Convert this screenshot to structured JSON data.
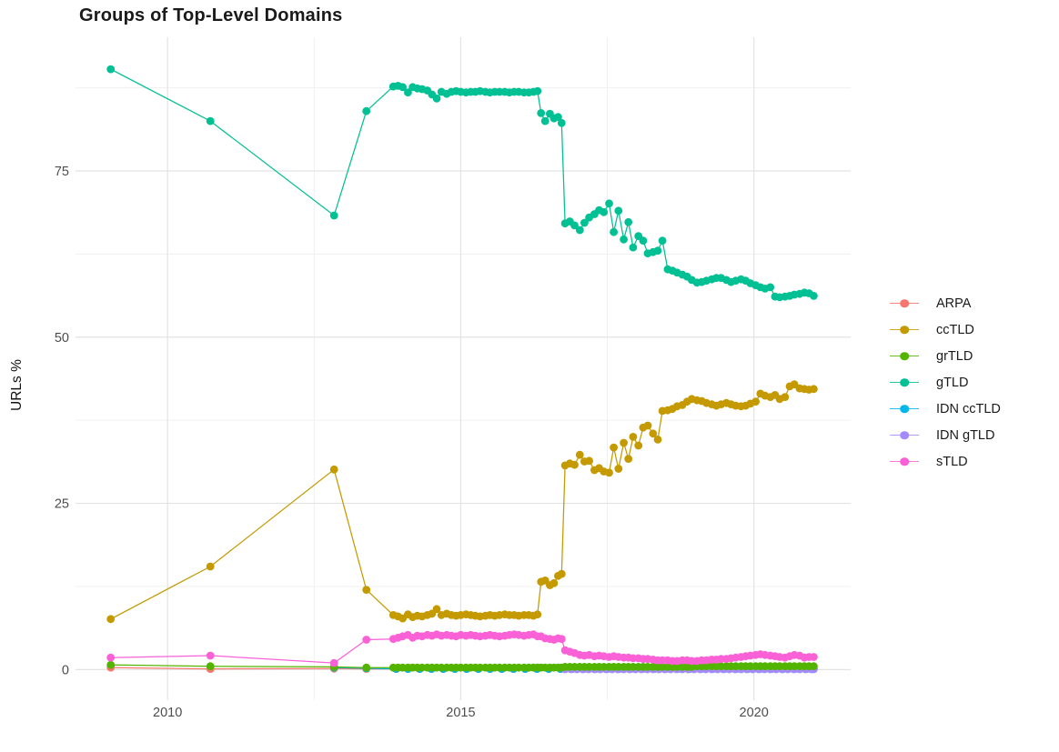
{
  "chart_data": {
    "type": "line",
    "title": "Groups of Top-Level Domains",
    "xlabel": "",
    "ylabel": "URLs %",
    "legend_position": "right",
    "grid": true,
    "xlim": [
      2008.43,
      2021.65
    ],
    "ylim": [
      -4.6,
      95.1
    ],
    "x_ticks": [
      2010,
      2015,
      2020
    ],
    "x_tick_labels": [
      "2010",
      "2015",
      "2020"
    ],
    "x_minor": [
      2012.5,
      2017.5
    ],
    "y_ticks": [
      0,
      25,
      50,
      75
    ],
    "y_tick_labels": [
      "0",
      "25",
      "50",
      "75"
    ],
    "y_minor": [
      12.5,
      37.5,
      62.5,
      87.5
    ],
    "theme": {
      "background": "#ffffff",
      "grid_major": "#e3e3e3",
      "grid_minor": "#efefef",
      "tick_label_color": "#4d4d4d",
      "title_color": "#1a1a1a",
      "axis_title_color": "#111111"
    },
    "series": [
      {
        "name": "ARPA",
        "color": "#f8766d",
        "x": [
          2009.03,
          2010.73,
          2012.84,
          2013.39,
          2013.9,
          2014.1,
          2014.3,
          2014.5,
          2014.7,
          2014.9,
          2015.1,
          2015.3,
          2015.5,
          2015.7,
          2015.9,
          2016.1,
          2016.3,
          2016.5,
          2016.7,
          2016.9,
          2017.1,
          2017.3,
          2017.5,
          2017.7,
          2017.9,
          2018.1,
          2018.3,
          2018.5,
          2018.7,
          2018.9,
          2019.1,
          2019.3,
          2019.5,
          2019.7,
          2019.9,
          2020.1,
          2020.3,
          2020.5,
          2020.7,
          2020.9,
          2021.02
        ],
        "y": [
          0.3,
          0.1,
          0.15,
          0.1,
          0.1,
          0.1,
          0.1,
          0.1,
          0.1,
          0.1,
          0.1,
          0.1,
          0.1,
          0.1,
          0.1,
          0.1,
          0.1,
          0.1,
          0.1,
          0.1,
          0.1,
          0.1,
          0.1,
          0.1,
          0.1,
          0.1,
          0.1,
          0.1,
          0.1,
          0.1,
          0.1,
          0.1,
          0.1,
          0.1,
          0.1,
          0.1,
          0.1,
          0.1,
          0.1,
          0.1,
          0.1
        ]
      },
      {
        "name": "ccTLD",
        "color": "#c49a00",
        "x": [
          2009.03,
          2010.73,
          2012.84,
          2013.39,
          2013.85,
          2013.93,
          2014.01,
          2014.1,
          2014.18,
          2014.26,
          2014.34,
          2014.43,
          2014.51,
          2014.59,
          2014.67,
          2014.76,
          2014.84,
          2014.92,
          2015.0,
          2015.09,
          2015.17,
          2015.25,
          2015.33,
          2015.42,
          2015.5,
          2015.58,
          2015.66,
          2015.75,
          2015.83,
          2015.91,
          2015.99,
          2016.08,
          2016.16,
          2016.24,
          2016.31,
          2016.37,
          2016.44,
          2016.52,
          2016.59,
          2016.66,
          2016.72,
          2016.78,
          2016.86,
          2016.94,
          2017.03,
          2017.11,
          2017.19,
          2017.28,
          2017.36,
          2017.44,
          2017.53,
          2017.61,
          2017.69,
          2017.78,
          2017.86,
          2017.94,
          2018.03,
          2018.11,
          2018.19,
          2018.28,
          2018.36,
          2018.44,
          2018.53,
          2018.61,
          2018.69,
          2018.78,
          2018.86,
          2018.94,
          2019.03,
          2019.11,
          2019.19,
          2019.28,
          2019.36,
          2019.44,
          2019.53,
          2019.61,
          2019.69,
          2019.78,
          2019.86,
          2019.94,
          2020.03,
          2020.11,
          2020.19,
          2020.28,
          2020.36,
          2020.44,
          2020.53,
          2020.61,
          2020.69,
          2020.78,
          2020.86,
          2020.94,
          2021.02
        ],
        "y": [
          7.6,
          15.5,
          30.1,
          12.0,
          8.2,
          8.0,
          7.7,
          8.3,
          7.9,
          8.1,
          8.0,
          8.2,
          8.4,
          9.1,
          8.2,
          8.4,
          8.2,
          8.1,
          8.2,
          8.3,
          8.2,
          8.1,
          8.0,
          8.1,
          8.2,
          8.1,
          8.2,
          8.3,
          8.2,
          8.2,
          8.1,
          8.2,
          8.2,
          8.1,
          8.3,
          13.2,
          13.4,
          12.7,
          13.0,
          14.1,
          14.4,
          30.7,
          31.0,
          30.8,
          32.3,
          31.3,
          31.4,
          30.0,
          30.3,
          29.8,
          29.6,
          33.4,
          30.2,
          34.1,
          31.7,
          35.0,
          33.7,
          36.4,
          36.7,
          35.5,
          34.6,
          38.9,
          39.0,
          39.2,
          39.6,
          39.8,
          40.3,
          40.7,
          40.5,
          40.4,
          40.1,
          39.9,
          39.7,
          39.9,
          40.1,
          39.9,
          39.7,
          39.6,
          39.7,
          40.0,
          40.3,
          41.5,
          41.2,
          41.0,
          41.3,
          40.7,
          41.0,
          42.6,
          42.9,
          42.3,
          42.2,
          42.1,
          42.2
        ]
      },
      {
        "name": "grTLD",
        "color": "#53b400",
        "x": [
          2009.03,
          2010.73,
          2012.84,
          2013.39,
          2013.85,
          2013.93,
          2014.01,
          2014.1,
          2014.18,
          2014.26,
          2014.34,
          2014.43,
          2014.51,
          2014.59,
          2014.67,
          2014.76,
          2014.84,
          2014.92,
          2015.0,
          2015.09,
          2015.17,
          2015.25,
          2015.33,
          2015.42,
          2015.5,
          2015.58,
          2015.66,
          2015.75,
          2015.83,
          2015.91,
          2015.99,
          2016.08,
          2016.16,
          2016.24,
          2016.31,
          2016.37,
          2016.44,
          2016.52,
          2016.59,
          2016.66,
          2016.72,
          2016.78,
          2016.86,
          2016.94,
          2017.03,
          2017.11,
          2017.19,
          2017.28,
          2017.36,
          2017.44,
          2017.53,
          2017.61,
          2017.69,
          2017.78,
          2017.86,
          2017.94,
          2018.03,
          2018.11,
          2018.19,
          2018.28,
          2018.36,
          2018.44,
          2018.53,
          2018.61,
          2018.69,
          2018.78,
          2018.86,
          2018.94,
          2019.03,
          2019.11,
          2019.19,
          2019.28,
          2019.36,
          2019.44,
          2019.53,
          2019.61,
          2019.69,
          2019.78,
          2019.86,
          2019.94,
          2020.03,
          2020.11,
          2020.19,
          2020.28,
          2020.36,
          2020.44,
          2020.53,
          2020.61,
          2020.69,
          2020.78,
          2020.86,
          2020.94,
          2021.02
        ],
        "y": [
          0.7,
          0.5,
          0.4,
          0.3,
          0.3,
          0.3,
          0.3,
          0.3,
          0.3,
          0.3,
          0.3,
          0.3,
          0.3,
          0.3,
          0.3,
          0.3,
          0.3,
          0.3,
          0.3,
          0.3,
          0.3,
          0.3,
          0.3,
          0.3,
          0.3,
          0.3,
          0.3,
          0.3,
          0.3,
          0.3,
          0.3,
          0.3,
          0.3,
          0.3,
          0.3,
          0.3,
          0.3,
          0.3,
          0.3,
          0.3,
          0.3,
          0.4,
          0.4,
          0.4,
          0.4,
          0.4,
          0.4,
          0.4,
          0.4,
          0.4,
          0.4,
          0.4,
          0.4,
          0.4,
          0.4,
          0.4,
          0.4,
          0.4,
          0.4,
          0.4,
          0.4,
          0.4,
          0.4,
          0.4,
          0.4,
          0.4,
          0.4,
          0.4,
          0.5,
          0.5,
          0.5,
          0.5,
          0.5,
          0.5,
          0.5,
          0.5,
          0.5,
          0.5,
          0.5,
          0.5,
          0.5,
          0.5,
          0.5,
          0.5,
          0.5,
          0.5,
          0.5,
          0.5,
          0.5,
          0.5,
          0.5,
          0.5,
          0.5
        ]
      },
      {
        "name": "gTLD",
        "color": "#00c094",
        "x": [
          2009.03,
          2010.73,
          2012.84,
          2013.39,
          2013.85,
          2013.93,
          2014.01,
          2014.1,
          2014.18,
          2014.26,
          2014.34,
          2014.43,
          2014.51,
          2014.59,
          2014.67,
          2014.76,
          2014.84,
          2014.92,
          2015.0,
          2015.09,
          2015.17,
          2015.25,
          2015.33,
          2015.42,
          2015.5,
          2015.58,
          2015.66,
          2015.75,
          2015.83,
          2015.91,
          2015.99,
          2016.08,
          2016.16,
          2016.24,
          2016.31,
          2016.37,
          2016.44,
          2016.52,
          2016.59,
          2016.66,
          2016.72,
          2016.78,
          2016.86,
          2016.94,
          2017.03,
          2017.11,
          2017.19,
          2017.28,
          2017.36,
          2017.44,
          2017.53,
          2017.61,
          2017.69,
          2017.78,
          2017.86,
          2017.94,
          2018.03,
          2018.11,
          2018.19,
          2018.28,
          2018.36,
          2018.44,
          2018.53,
          2018.61,
          2018.69,
          2018.78,
          2018.86,
          2018.94,
          2019.03,
          2019.11,
          2019.19,
          2019.28,
          2019.36,
          2019.44,
          2019.53,
          2019.61,
          2019.69,
          2019.78,
          2019.86,
          2019.94,
          2020.03,
          2020.11,
          2020.19,
          2020.28,
          2020.36,
          2020.44,
          2020.53,
          2020.61,
          2020.69,
          2020.78,
          2020.86,
          2020.94,
          2021.02
        ],
        "y": [
          90.3,
          82.5,
          68.3,
          84.0,
          87.7,
          87.8,
          87.6,
          86.8,
          87.6,
          87.4,
          87.3,
          87.1,
          86.5,
          85.9,
          86.9,
          86.6,
          86.9,
          87.0,
          86.9,
          86.8,
          86.9,
          86.9,
          87.0,
          86.9,
          86.8,
          86.9,
          86.9,
          86.9,
          86.8,
          86.9,
          86.9,
          86.8,
          86.8,
          86.9,
          87.0,
          83.7,
          82.5,
          83.6,
          82.9,
          83.1,
          82.2,
          67.1,
          67.4,
          66.8,
          66.1,
          67.2,
          68.0,
          68.5,
          69.1,
          68.8,
          70.1,
          65.8,
          69.0,
          64.7,
          67.3,
          63.5,
          65.2,
          64.5,
          62.6,
          62.8,
          63.0,
          64.5,
          60.2,
          60.0,
          59.7,
          59.4,
          59.1,
          58.6,
          58.2,
          58.3,
          58.5,
          58.7,
          58.9,
          58.9,
          58.6,
          58.3,
          58.5,
          58.7,
          58.5,
          58.1,
          57.8,
          57.5,
          57.3,
          57.5,
          56.1,
          56.0,
          56.1,
          56.2,
          56.4,
          56.5,
          56.7,
          56.6,
          56.2
        ]
      },
      {
        "name": "IDN ccTLD",
        "color": "#00b6eb",
        "x": [
          2012.84,
          2013.39,
          2013.9,
          2014.1,
          2014.3,
          2014.5,
          2014.7,
          2014.9,
          2015.1,
          2015.3,
          2015.5,
          2015.7,
          2015.9,
          2016.1,
          2016.3,
          2016.5,
          2016.7,
          2016.9,
          2017.1,
          2017.3,
          2017.5,
          2017.7,
          2017.9,
          2018.1,
          2018.3,
          2018.5,
          2018.7,
          2018.9,
          2019.1,
          2019.3,
          2019.5,
          2019.7,
          2019.9,
          2020.1,
          2020.3,
          2020.5,
          2020.7,
          2020.9,
          2021.02
        ],
        "y": [
          0.3,
          0.2,
          0.1,
          0.1,
          0.1,
          0.1,
          0.1,
          0.1,
          0.1,
          0.1,
          0.1,
          0.1,
          0.1,
          0.1,
          0.1,
          0.1,
          0.1,
          0.1,
          0.1,
          0.1,
          0.1,
          0.1,
          0.1,
          0.1,
          0.1,
          0.1,
          0.1,
          0.1,
          0.1,
          0.1,
          0.1,
          0.1,
          0.1,
          0.1,
          0.1,
          0.1,
          0.1,
          0.1,
          0.1
        ]
      },
      {
        "name": "IDN gTLD",
        "color": "#a58aff",
        "x": [
          2016.78,
          2016.88,
          2016.98,
          2017.08,
          2017.18,
          2017.28,
          2017.38,
          2017.48,
          2017.58,
          2017.68,
          2017.78,
          2017.88,
          2017.98,
          2018.08,
          2018.18,
          2018.28,
          2018.38,
          2018.48,
          2018.58,
          2018.68,
          2018.78,
          2018.88,
          2018.98,
          2019.08,
          2019.18,
          2019.28,
          2019.38,
          2019.48,
          2019.58,
          2019.68,
          2019.78,
          2019.88,
          2019.98,
          2020.08,
          2020.18,
          2020.28,
          2020.38,
          2020.48,
          2020.58,
          2020.68,
          2020.78,
          2020.88,
          2020.98,
          2021.02
        ],
        "y": [
          0.05,
          0.05,
          0.05,
          0.05,
          0.05,
          0.05,
          0.05,
          0.05,
          0.05,
          0.05,
          0.05,
          0.05,
          0.05,
          0.05,
          0.05,
          0.05,
          0.05,
          0.05,
          0.05,
          0.05,
          0.05,
          0.05,
          0.05,
          0.05,
          0.05,
          0.05,
          0.05,
          0.05,
          0.05,
          0.05,
          0.05,
          0.05,
          0.05,
          0.05,
          0.05,
          0.05,
          0.05,
          0.05,
          0.05,
          0.05,
          0.05,
          0.05,
          0.05,
          0.05
        ]
      },
      {
        "name": "sTLD",
        "color": "#fb61d7",
        "x": [
          2009.03,
          2010.73,
          2012.84,
          2013.39,
          2013.85,
          2013.93,
          2014.01,
          2014.1,
          2014.18,
          2014.26,
          2014.34,
          2014.43,
          2014.51,
          2014.59,
          2014.67,
          2014.76,
          2014.84,
          2014.92,
          2015.0,
          2015.09,
          2015.17,
          2015.25,
          2015.33,
          2015.42,
          2015.5,
          2015.58,
          2015.66,
          2015.75,
          2015.83,
          2015.91,
          2015.99,
          2016.08,
          2016.16,
          2016.24,
          2016.31,
          2016.37,
          2016.44,
          2016.52,
          2016.59,
          2016.66,
          2016.72,
          2016.78,
          2016.86,
          2016.94,
          2017.03,
          2017.11,
          2017.19,
          2017.28,
          2017.36,
          2017.44,
          2017.53,
          2017.61,
          2017.69,
          2017.78,
          2017.86,
          2017.94,
          2018.03,
          2018.11,
          2018.19,
          2018.28,
          2018.36,
          2018.44,
          2018.53,
          2018.61,
          2018.69,
          2018.78,
          2018.86,
          2018.94,
          2019.03,
          2019.11,
          2019.19,
          2019.28,
          2019.36,
          2019.44,
          2019.53,
          2019.61,
          2019.69,
          2019.78,
          2019.86,
          2019.94,
          2020.03,
          2020.11,
          2020.19,
          2020.28,
          2020.36,
          2020.44,
          2020.53,
          2020.61,
          2020.69,
          2020.78,
          2020.86,
          2020.94,
          2021.02
        ],
        "y": [
          1.8,
          2.1,
          1.0,
          4.5,
          4.6,
          4.8,
          5.0,
          5.2,
          4.8,
          5.1,
          5.0,
          5.2,
          5.1,
          5.3,
          5.1,
          5.2,
          5.1,
          5.0,
          5.2,
          5.1,
          5.2,
          5.1,
          5.0,
          5.1,
          5.2,
          5.1,
          5.0,
          5.1,
          5.2,
          5.3,
          5.2,
          5.1,
          5.2,
          5.3,
          5.0,
          5.0,
          4.7,
          4.6,
          4.5,
          4.7,
          4.6,
          2.9,
          2.7,
          2.5,
          2.2,
          2.1,
          2.2,
          2.0,
          2.1,
          2.0,
          1.9,
          2.0,
          1.9,
          1.8,
          1.8,
          1.7,
          1.7,
          1.6,
          1.6,
          1.5,
          1.4,
          1.4,
          1.4,
          1.3,
          1.3,
          1.4,
          1.4,
          1.3,
          1.3,
          1.4,
          1.4,
          1.5,
          1.5,
          1.6,
          1.6,
          1.7,
          1.8,
          1.9,
          2.0,
          2.1,
          2.2,
          2.3,
          2.2,
          2.1,
          2.0,
          1.9,
          1.8,
          2.0,
          2.2,
          2.1,
          1.8,
          1.9,
          1.9
        ]
      }
    ]
  }
}
